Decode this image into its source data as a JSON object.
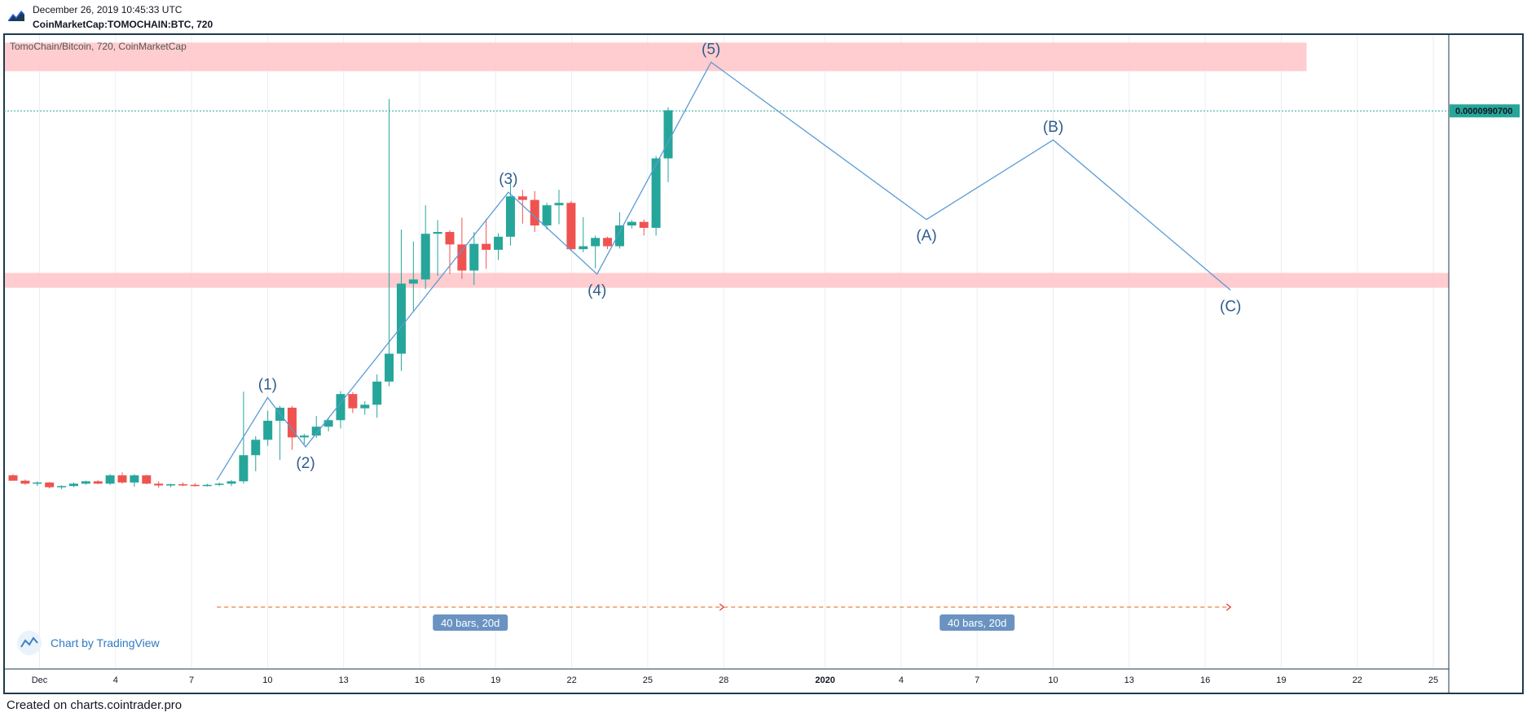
{
  "header": {
    "date": "December 26, 2019 10:45:33 UTC",
    "symbol": "CoinMarketCap:TOMOCHAIN:BTC, 720"
  },
  "footer": {
    "text": "Created on charts.cointrader.pro"
  },
  "watermark": {
    "text": "Chart by TradingView"
  },
  "colors": {
    "up": "#26a69a",
    "down": "#ef5350",
    "zone": "#ffc9cc",
    "wave": "#5a9bd5",
    "wave_label": "#2e5d8e",
    "price_line": "#26a69a",
    "range_arrow": "#f57c3a",
    "range_label_bg": "#6a93c2",
    "border": "#1e3a4d"
  },
  "icons": {
    "logo": "tradingview-logo-icon",
    "watermark": "tradingview-cloud-icon"
  },
  "chart_data": {
    "type": "candlestick",
    "title": "TomoChain/Bitcoin, 720, CoinMarketCap",
    "x_axis": {
      "start_date": "2019-11-29",
      "end_date": "2020-01-26",
      "tick_labels": [
        {
          "date": "2019-12-01",
          "label": "Dec"
        },
        {
          "date": "2019-12-04",
          "label": "4"
        },
        {
          "date": "2019-12-07",
          "label": "7"
        },
        {
          "date": "2019-12-10",
          "label": "10"
        },
        {
          "date": "2019-12-13",
          "label": "13"
        },
        {
          "date": "2019-12-16",
          "label": "16"
        },
        {
          "date": "2019-12-19",
          "label": "19"
        },
        {
          "date": "2019-12-22",
          "label": "22"
        },
        {
          "date": "2019-12-25",
          "label": "25"
        },
        {
          "date": "2019-12-28",
          "label": "28"
        },
        {
          "date": "2020-01-01",
          "label": "2020",
          "bold": true
        },
        {
          "date": "2020-01-04",
          "label": "4"
        },
        {
          "date": "2020-01-07",
          "label": "7"
        },
        {
          "date": "2020-01-10",
          "label": "10"
        },
        {
          "date": "2020-01-13",
          "label": "13"
        },
        {
          "date": "2020-01-16",
          "label": "16"
        },
        {
          "date": "2020-01-19",
          "label": "19"
        },
        {
          "date": "2020-01-22",
          "label": "22"
        },
        {
          "date": "2020-01-25",
          "label": "25"
        }
      ]
    },
    "y_axis": {
      "ylim": [
        2.4e-06,
        1.12e-05
      ],
      "ticks": [
        "0.0000250000",
        "0.0000300000",
        "0.0000350000",
        "0.0000400000",
        "0.0000450000",
        "0.0000500000",
        "0.0000550000",
        "0.0000600000",
        "0.0000650000",
        "0.0000700000",
        "0.0000750000",
        "0.0000800000",
        "0.0000850000",
        "0.0000900000",
        "0.0000950000",
        "0.0001000000",
        "0.0001050000",
        "0.0001100000"
      ],
      "last_price": "0.0000990700",
      "last_price_value": 9.9e-06
    },
    "grid": true,
    "candles_ohlc": [
      [
        3.76e-06,
        3.78e-06,
        3.67e-06,
        3.67e-06
      ],
      [
        3.67e-06,
        3.69e-06,
        3.6e-06,
        3.62e-06
      ],
      [
        3.62e-06,
        3.66e-06,
        3.58e-06,
        3.64e-06
      ],
      [
        3.64e-06,
        3.65e-06,
        3.54e-06,
        3.56e-06
      ],
      [
        3.56e-06,
        3.59e-06,
        3.53e-06,
        3.58e-06
      ],
      [
        3.58e-06,
        3.64e-06,
        3.56e-06,
        3.62e-06
      ],
      [
        3.62e-06,
        3.67e-06,
        3.6e-06,
        3.66e-06
      ],
      [
        3.66e-06,
        3.68e-06,
        3.61e-06,
        3.62e-06
      ],
      [
        3.62e-06,
        3.78e-06,
        3.6e-06,
        3.76e-06
      ],
      [
        3.76e-06,
        3.81e-06,
        3.62e-06,
        3.64e-06
      ],
      [
        3.64e-06,
        3.78e-06,
        3.57e-06,
        3.76e-06
      ],
      [
        3.76e-06,
        3.77e-06,
        3.61e-06,
        3.62e-06
      ],
      [
        3.62e-06,
        3.66e-06,
        3.55e-06,
        3.59e-06
      ],
      [
        3.59e-06,
        3.62e-06,
        3.56e-06,
        3.61e-06
      ],
      [
        3.61e-06,
        3.64e-06,
        3.58e-06,
        3.6e-06
      ],
      [
        3.6e-06,
        3.63e-06,
        3.57e-06,
        3.59e-06
      ],
      [
        3.59e-06,
        3.62e-06,
        3.57e-06,
        3.6e-06
      ],
      [
        3.6e-06,
        3.64e-06,
        3.58e-06,
        3.62e-06
      ],
      [
        3.62e-06,
        3.68e-06,
        3.58e-06,
        3.66e-06
      ],
      [
        3.66e-06,
        5.17e-06,
        3.62e-06,
        4.1e-06
      ],
      [
        4.1e-06,
        4.42e-06,
        3.83e-06,
        4.36e-06
      ],
      [
        4.36e-06,
        4.85e-06,
        4.26e-06,
        4.68e-06
      ],
      [
        4.68e-06,
        4.93e-06,
        4.02e-06,
        4.9e-06
      ],
      [
        4.9e-06,
        4.93e-06,
        4.19e-06,
        4.4e-06
      ],
      [
        4.4e-06,
        4.46e-06,
        4.28e-06,
        4.43e-06
      ],
      [
        4.43e-06,
        4.76e-06,
        4.39e-06,
        4.58e-06
      ],
      [
        4.58e-06,
        4.72e-06,
        4.5e-06,
        4.69e-06
      ],
      [
        4.69e-06,
        5.18e-06,
        4.55e-06,
        5.13e-06
      ],
      [
        5.13e-06,
        5.16e-06,
        4.81e-06,
        4.89e-06
      ],
      [
        4.89e-06,
        5.01e-06,
        4.78e-06,
        4.95e-06
      ],
      [
        4.95e-06,
        5.46e-06,
        4.73e-06,
        5.34e-06
      ],
      [
        5.34e-06,
        1.01e-05,
        5.26e-06,
        5.81e-06
      ],
      [
        5.81e-06,
        7.9e-06,
        5.52e-06,
        6.99e-06
      ],
      [
        6.99e-06,
        7.7e-06,
        6.52e-06,
        7.06e-06
      ],
      [
        7.06e-06,
        8.31e-06,
        6.9e-06,
        7.83e-06
      ],
      [
        7.83e-06,
        8.06e-06,
        7.12e-06,
        7.86e-06
      ],
      [
        7.86e-06,
        7.89e-06,
        7.15e-06,
        7.65e-06
      ],
      [
        7.65e-06,
        8.1e-06,
        7.07e-06,
        7.21e-06
      ],
      [
        7.21e-06,
        7.86e-06,
        6.97e-06,
        7.66e-06
      ],
      [
        7.66e-06,
        8.08e-06,
        7.24e-06,
        7.56e-06
      ],
      [
        7.56e-06,
        7.84e-06,
        7.39e-06,
        7.78e-06
      ],
      [
        7.78e-06,
        8.7e-06,
        7.63e-06,
        8.46e-06
      ],
      [
        8.46e-06,
        8.57e-06,
        8e-06,
        8.4e-06
      ],
      [
        8.4e-06,
        8.55e-06,
        7.86e-06,
        7.97e-06
      ],
      [
        7.97e-06,
        8.35e-06,
        7.9e-06,
        8.31e-06
      ],
      [
        8.31e-06,
        8.57e-06,
        7.99e-06,
        8.35e-06
      ],
      [
        8.35e-06,
        8.38e-06,
        7.54e-06,
        7.57e-06
      ],
      [
        7.57e-06,
        8.11e-06,
        7.52e-06,
        7.62e-06
      ],
      [
        7.62e-06,
        7.8e-06,
        7.25e-06,
        7.76e-06
      ],
      [
        7.76e-06,
        7.78e-06,
        7.57e-06,
        7.62e-06
      ],
      [
        7.62e-06,
        8.19e-06,
        7.58e-06,
        7.97e-06
      ],
      [
        7.97e-06,
        8.06e-06,
        7.92e-06,
        8.03e-06
      ],
      [
        8.03e-06,
        8.07e-06,
        7.8e-06,
        7.93e-06
      ],
      [
        7.93e-06,
        9.14e-06,
        7.8e-06,
        9.1e-06
      ],
      [
        9.1e-06,
        9.96e-06,
        8.7e-06,
        9.91e-06
      ]
    ],
    "zones": [
      {
        "from": 1.057e-05,
        "to": 1.105e-05,
        "end_date": "2020-01-20"
      },
      {
        "from": 6.92e-06,
        "to": 7.17e-06,
        "end_date": "2020-01-26"
      }
    ],
    "wave_path": [
      {
        "date": "2019-12-08T00:00",
        "value": 3.68e-06
      },
      {
        "date": "2019-12-10T00:00",
        "value": 5.07e-06,
        "label": "(1)",
        "label_pos": "above"
      },
      {
        "date": "2019-12-11T12:00",
        "value": 4.24e-06,
        "label": "(2)",
        "label_pos": "below"
      },
      {
        "date": "2019-12-19T12:00",
        "value": 8.53e-06,
        "label": "(3)",
        "label_pos": "above"
      },
      {
        "date": "2019-12-23T00:00",
        "value": 7.15e-06,
        "label": "(4)",
        "label_pos": "below"
      },
      {
        "date": "2019-12-27T12:00",
        "value": 1.072e-05,
        "label": "(5)",
        "label_pos": "above"
      },
      {
        "date": "2020-01-05T00:00",
        "value": 8.07e-06,
        "label": "(A)",
        "label_pos": "below"
      },
      {
        "date": "2020-01-10T00:00",
        "value": 9.41e-06,
        "label": "(B)",
        "label_pos": "above"
      },
      {
        "date": "2020-01-17T00:00",
        "value": 6.88e-06,
        "label": "(C)",
        "label_pos": "below"
      }
    ],
    "date_ranges": [
      {
        "from": "2019-12-08T00:00",
        "to": "2019-12-28T00:00",
        "label": "40 bars, 20d"
      },
      {
        "from": "2019-12-28T00:00",
        "to": "2020-01-17T00:00",
        "label": "40 bars, 20d"
      }
    ]
  }
}
